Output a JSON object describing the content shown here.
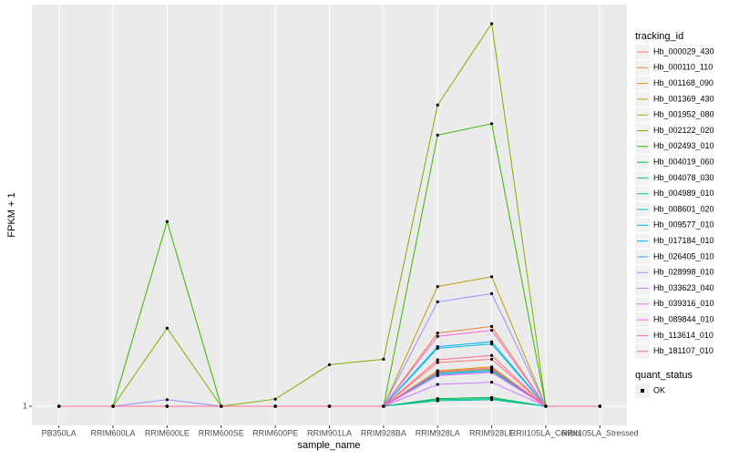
{
  "chart_data": {
    "type": "line",
    "x_label": "sample_name",
    "y_label": "FPKM + 1",
    "categories": [
      "PB350LA",
      "RRIM600LA",
      "RRIM600LE",
      "RRIM600SE",
      "RRIM600PE",
      "RRIM901LA",
      "RRIM928BA",
      "RRIM928LA",
      "RRIM928LE",
      "RRII105LA_Control",
      "RRII105LA_Stressed"
    ],
    "ylim": [
      0.65,
      8.35
    ],
    "yticks": [
      1
    ],
    "grid": true,
    "legend_title": "tracking_id",
    "legend_position": "right",
    "point_color": "#000000",
    "shape_legend": {
      "title": "quant_status",
      "levels": [
        "OK"
      ]
    },
    "series": [
      {
        "name": "Hb_000029_430",
        "color": "#F8766D",
        "values": [
          1,
          1,
          1,
          1,
          1,
          1,
          1,
          1.8,
          1.86,
          1,
          1
        ]
      },
      {
        "name": "Hb_000110_110",
        "color": "#EA8331",
        "values": [
          1,
          1,
          1,
          1,
          1,
          1,
          1,
          2.34,
          2.46,
          1,
          1
        ]
      },
      {
        "name": "Hb_001168_090",
        "color": "#D89000",
        "values": [
          1,
          1,
          1,
          1,
          1,
          1,
          1,
          1.65,
          1.72,
          1,
          1
        ]
      },
      {
        "name": "Hb_001369_430",
        "color": "#C09B00",
        "values": [
          1,
          1,
          1,
          1,
          1,
          1,
          1,
          3.19,
          3.37,
          1,
          1
        ]
      },
      {
        "name": "Hb_001952_080",
        "color": "#A3A500",
        "values": [
          1,
          1,
          1,
          1,
          1,
          1,
          1,
          1.62,
          1.68,
          1,
          1
        ]
      },
      {
        "name": "Hb_002122_020",
        "color": "#7CAE00",
        "values": [
          1,
          1,
          2.43,
          1,
          1.13,
          1.76,
          1.86,
          6.51,
          8.0,
          1,
          1
        ]
      },
      {
        "name": "Hb_002493_010",
        "color": "#39B600",
        "values": [
          1,
          1,
          4.38,
          1,
          1,
          1,
          1,
          5.96,
          6.17,
          1,
          1
        ]
      },
      {
        "name": "Hb_004019_060",
        "color": "#00BB4E",
        "values": [
          1,
          1,
          1,
          1,
          1,
          1,
          1,
          1.14,
          1.16,
          1,
          1
        ]
      },
      {
        "name": "Hb_004078_030",
        "color": "#00BF7D",
        "values": [
          1,
          1,
          1,
          1,
          1,
          1,
          1,
          1.12,
          1.14,
          1,
          1
        ]
      },
      {
        "name": "Hb_004989_010",
        "color": "#00C1A3",
        "values": [
          1,
          1,
          1,
          1,
          1,
          1,
          1,
          1.1,
          1.12,
          1,
          1
        ]
      },
      {
        "name": "Hb_008601_020",
        "color": "#00BFC4",
        "values": [
          1,
          1,
          1,
          1,
          1,
          1,
          1,
          1.6,
          1.66,
          1,
          1
        ]
      },
      {
        "name": "Hb_009577_010",
        "color": "#00BAE0",
        "values": [
          1,
          1,
          1,
          1,
          1,
          1,
          1,
          2.06,
          2.14,
          1,
          1
        ]
      },
      {
        "name": "Hb_017184_010",
        "color": "#00B0F6",
        "values": [
          1,
          1,
          1,
          1,
          1,
          1,
          1,
          2.09,
          2.18,
          1,
          1
        ]
      },
      {
        "name": "Hb_026405_010",
        "color": "#35A2FF",
        "values": [
          1,
          1,
          1,
          1,
          1,
          1,
          1,
          1.58,
          1.64,
          1,
          1
        ]
      },
      {
        "name": "Hb_028998_010",
        "color": "#9590FF",
        "values": [
          1,
          1,
          1.12,
          1,
          1,
          1,
          1,
          2.91,
          3.06,
          1,
          1
        ]
      },
      {
        "name": "Hb_033623_040",
        "color": "#C77CFF",
        "values": [
          1,
          1,
          1,
          1,
          1,
          1,
          1,
          1.4,
          1.44,
          1,
          1
        ]
      },
      {
        "name": "Hb_039316_010",
        "color": "#E76BF3",
        "values": [
          1,
          1,
          1,
          1,
          1,
          1,
          1,
          1.56,
          1.62,
          1,
          1
        ]
      },
      {
        "name": "Hb_089844_010",
        "color": "#FA62DB",
        "values": [
          1,
          1,
          1,
          1,
          1,
          1,
          1,
          2.28,
          2.39,
          1,
          1
        ]
      },
      {
        "name": "Hb_113614_010",
        "color": "#FF62BC",
        "values": [
          1,
          1,
          1,
          1,
          1,
          1,
          1,
          1.63,
          1.7,
          1,
          1
        ]
      },
      {
        "name": "Hb_181107_010",
        "color": "#FF6C91",
        "values": [
          1,
          1,
          1,
          1,
          1,
          1,
          1,
          1.85,
          1.93,
          1,
          1
        ]
      }
    ]
  }
}
